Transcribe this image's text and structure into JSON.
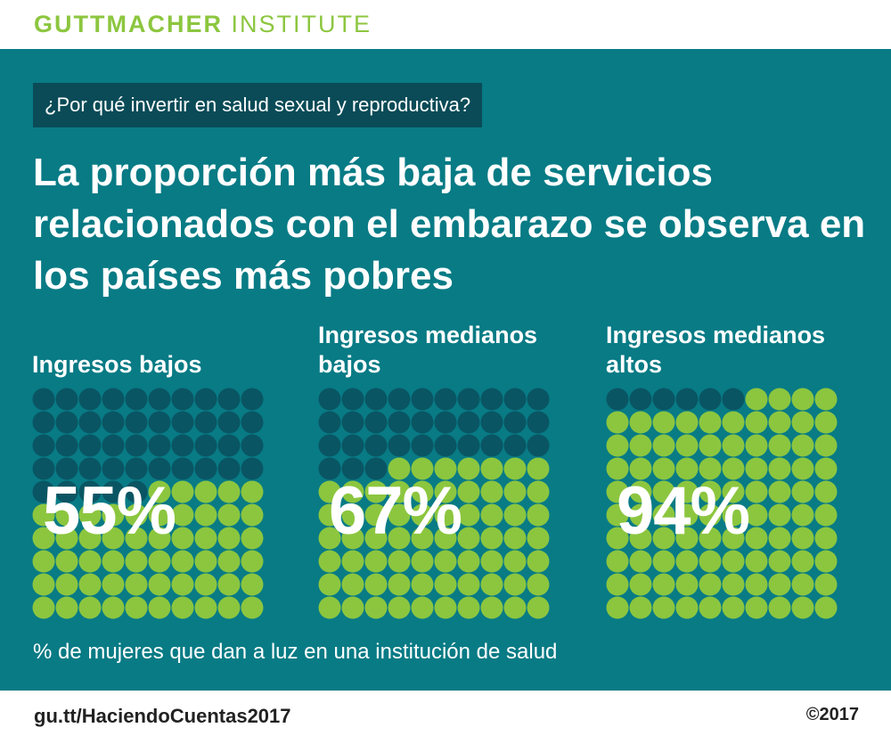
{
  "brand": {
    "name_bold": "GUTTMACHER",
    "name_light": "INSTITUTE"
  },
  "kicker": "¿Por qué invertir en salud sexual y reproductiva?",
  "headline": "La proporción más baja de servicios relacionados con el embarazo se observa en los países más pobres",
  "footer": {
    "url": "gu.tt/HaciendoCuentas2017",
    "copyright": "©2017"
  },
  "colors": {
    "panel": "#087b85",
    "filled_dot": "#8cc63f",
    "empty_dot": "#0a5563",
    "kicker_bg": "#0a4b57",
    "brand": "#8cc63f"
  },
  "chart_data": {
    "type": "waffle",
    "note": "% de mujeres que dan a luz en una institución de salud",
    "grid": {
      "rows": 10,
      "cols": 10
    },
    "groups": [
      {
        "label": "Ingresos bajos",
        "value": 55,
        "value_label": "55%"
      },
      {
        "label": "Ingresos medianos bajos",
        "value": 67,
        "value_label": "67%"
      },
      {
        "label": "Ingresos medianos altos",
        "value": 94,
        "value_label": "94%"
      }
    ]
  }
}
